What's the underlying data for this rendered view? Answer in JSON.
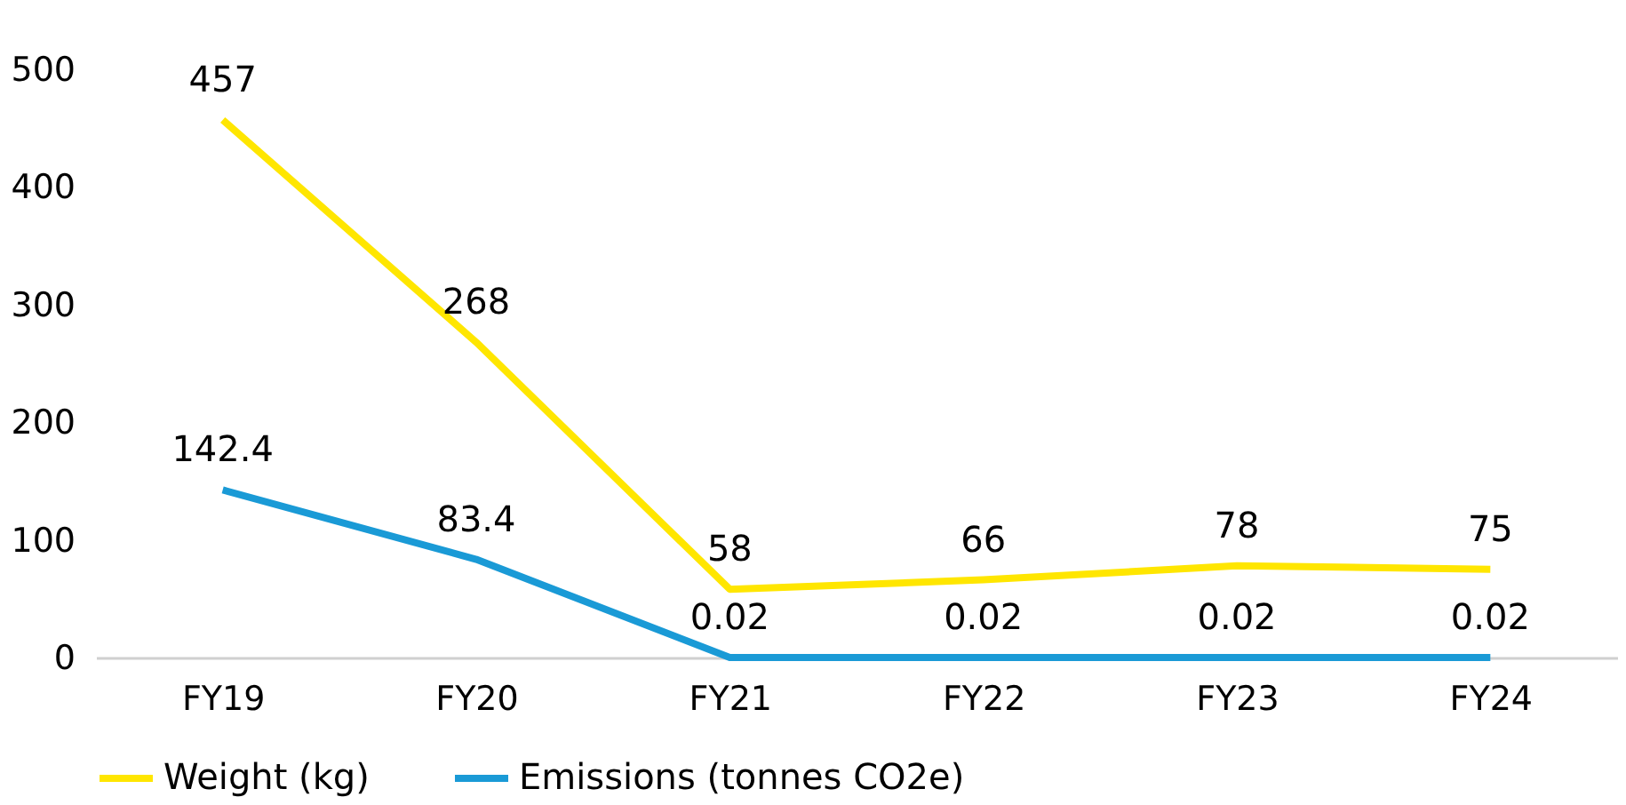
{
  "chart_data": {
    "type": "line",
    "categories": [
      "FY19",
      "FY20",
      "FY21",
      "FY22",
      "FY23",
      "FY24"
    ],
    "series": [
      {
        "name": "Weight (kg)",
        "color": "#ffe600",
        "values": [
          457,
          268,
          58,
          66,
          78,
          75
        ]
      },
      {
        "name": "Emissions (tonnes CO2e)",
        "color": "#1a9ad6",
        "values": [
          142.4,
          83.4,
          0.02,
          0.02,
          0.02,
          0.02
        ]
      }
    ],
    "ylim": [
      0,
      500
    ],
    "yticks": [
      0,
      100,
      200,
      300,
      400,
      500
    ],
    "data_labels": true,
    "grid": false,
    "legend": "bottom",
    "marker": "none",
    "line_style": "solid"
  }
}
